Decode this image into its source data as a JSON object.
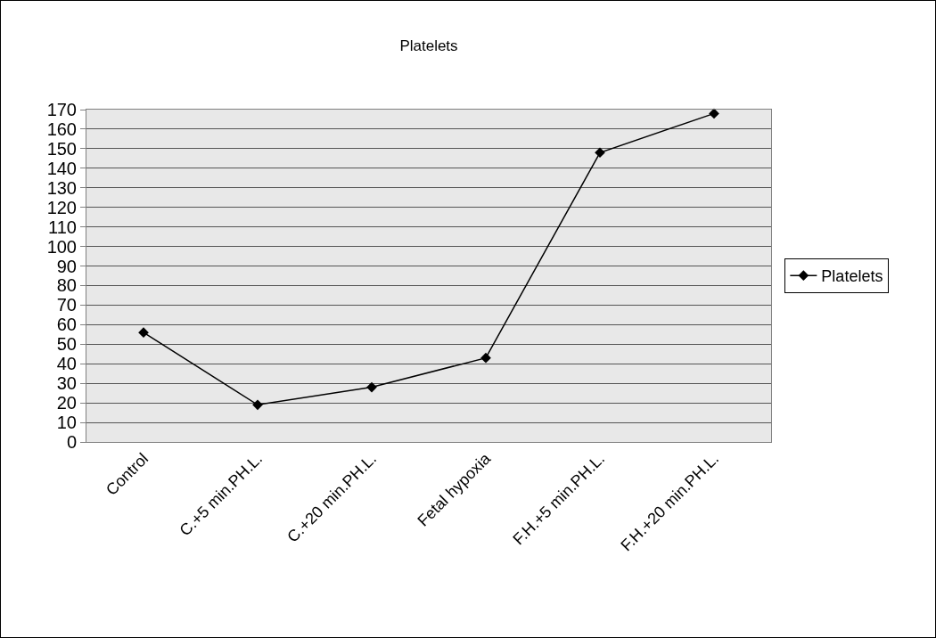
{
  "chart_data": {
    "type": "line",
    "title": "Platelets",
    "categories": [
      "Control",
      "C.+5 min.PH.L.",
      "C.+20 min.PH.L.",
      "Fetal hypoxia",
      "F.H.+5 min.PH.L.",
      "F.H.+20 min.PH.L."
    ],
    "series": [
      {
        "name": "Platelets",
        "color": "#000000",
        "values": [
          56,
          19,
          28,
          43,
          148,
          168
        ]
      }
    ],
    "ylim": [
      0,
      170
    ],
    "yticks": [
      0,
      10,
      20,
      30,
      40,
      50,
      60,
      70,
      80,
      90,
      100,
      110,
      120,
      130,
      140,
      150,
      160,
      170
    ],
    "grid": "y",
    "legend": "right",
    "marker": "diamond",
    "line_style": "solid"
  }
}
